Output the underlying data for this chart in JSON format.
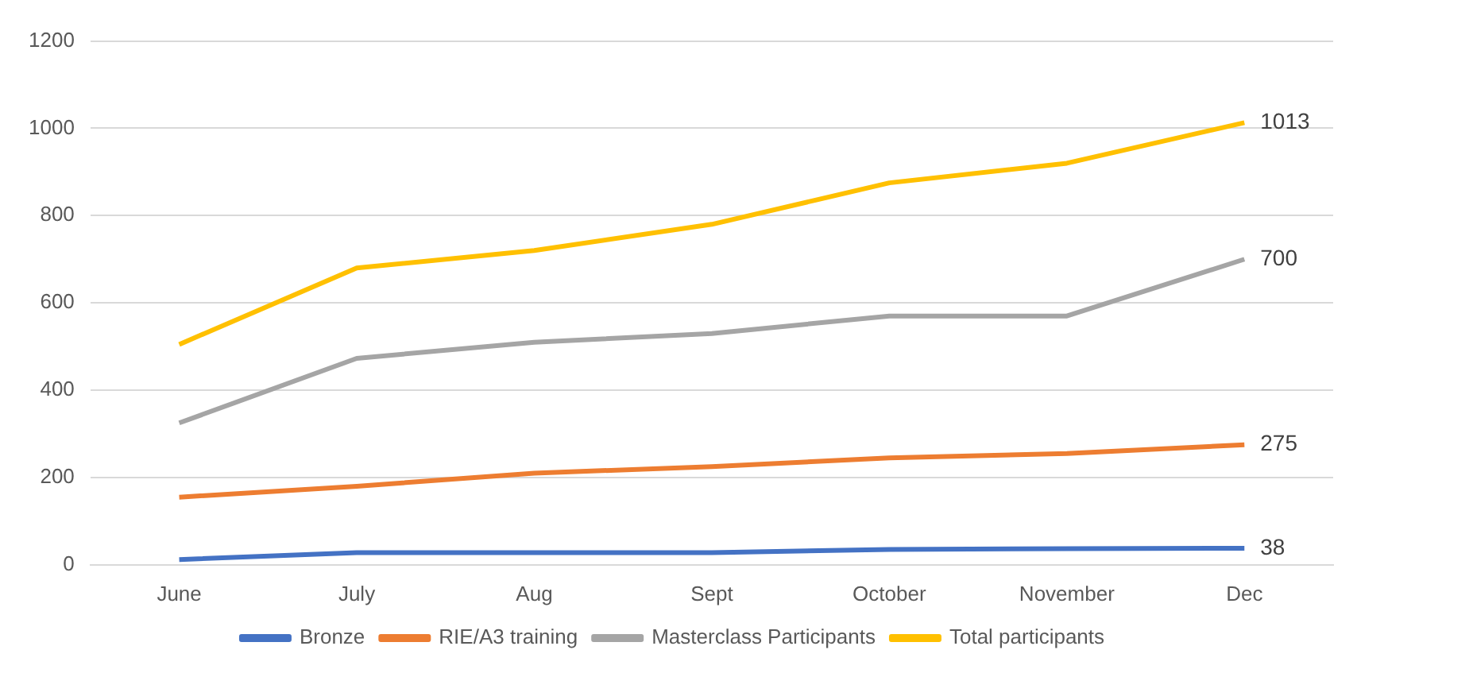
{
  "chart_data": {
    "type": "line",
    "categories": [
      "June",
      "July",
      "Aug",
      "Sept",
      "October",
      "November",
      "Dec"
    ],
    "series": [
      {
        "name": "Bronze",
        "color": "#4472c4",
        "values": [
          12,
          28,
          28,
          28,
          35,
          37,
          38
        ],
        "value_labels": [
          null,
          null,
          null,
          null,
          null,
          null,
          "38"
        ]
      },
      {
        "name": "RIE/A3 training",
        "color": "#ed7d31",
        "values": [
          155,
          180,
          210,
          225,
          245,
          255,
          275
        ],
        "value_labels": [
          null,
          null,
          null,
          null,
          null,
          null,
          "275"
        ]
      },
      {
        "name": "Masterclass Participants",
        "color": "#a5a5a5",
        "values": [
          325,
          473,
          510,
          530,
          570,
          570,
          700
        ],
        "value_labels": [
          null,
          null,
          null,
          null,
          null,
          null,
          "700"
        ]
      },
      {
        "name": "Total participants",
        "color": "#ffc000",
        "values": [
          505,
          680,
          720,
          780,
          875,
          920,
          1013
        ],
        "value_labels": [
          null,
          null,
          null,
          null,
          null,
          null,
          "1013"
        ]
      }
    ],
    "ylim": [
      0,
      1200
    ],
    "yticks": [
      0,
      200,
      400,
      600,
      800,
      1000,
      1200
    ],
    "grid": "y",
    "legend": "bottom",
    "marker": "none",
    "line_style": "solid"
  }
}
